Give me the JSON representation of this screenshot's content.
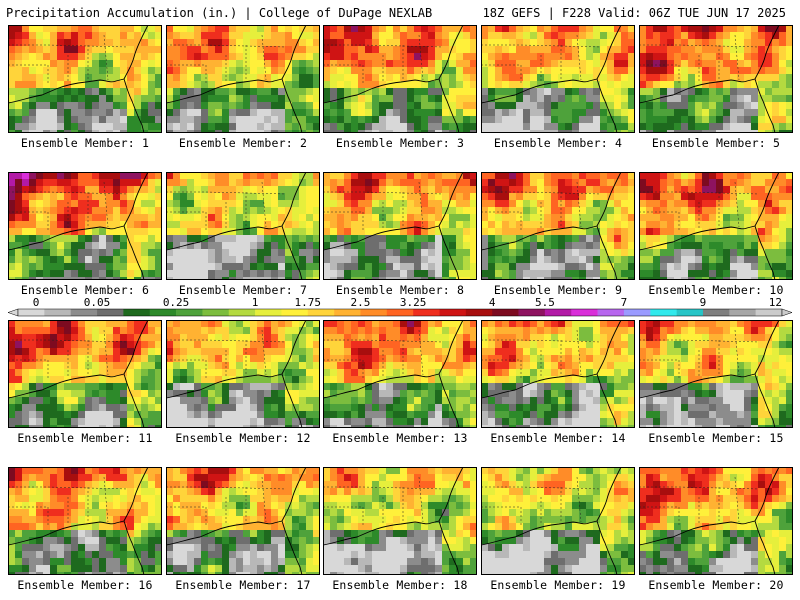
{
  "header": {
    "left": "Precipitation Accumulation (in.) | College of DuPage NEXLAB",
    "right": "18Z GEFS | F228 Valid: 06Z TUE JUN 17 2025"
  },
  "colorbar": {
    "labels": [
      "0",
      "0.05",
      "0.25",
      "1",
      "1.75",
      "2.5",
      "3.25",
      "4",
      "5.5",
      "7",
      "9",
      "12"
    ],
    "colors": [
      "#d8d8d8",
      "#b8b8b8",
      "#8c8c8c",
      "#6e6e6e",
      "#1e6a1e",
      "#2d8a2a",
      "#4ea23b",
      "#7cbd3e",
      "#b4da40",
      "#e6ef3c",
      "#fff03a",
      "#ffd43a",
      "#ffb232",
      "#ff8c28",
      "#ff6422",
      "#ef2e1e",
      "#cf1414",
      "#a80e0e",
      "#7d0b20",
      "#8e1360",
      "#b21aa6",
      "#d92ed9",
      "#b766ee",
      "#9b9bff",
      "#31e9ec",
      "#27c5c7",
      "#7f7f7f",
      "#a6a6a6",
      "#cbcbcb"
    ]
  },
  "panels": [
    {
      "label": "Ensemble Member: 1",
      "wetness": 0.5,
      "west_wet": 0.55
    },
    {
      "label": "Ensemble Member: 2",
      "wetness": 0.45,
      "west_wet": 0.65
    },
    {
      "label": "Ensemble Member: 3",
      "wetness": 0.62,
      "west_wet": 0.7
    },
    {
      "label": "Ensemble Member: 4",
      "wetness": 0.55,
      "west_wet": 0.35
    },
    {
      "label": "Ensemble Member: 5",
      "wetness": 0.65,
      "west_wet": 0.55
    },
    {
      "label": "Ensemble Member: 6",
      "wetness": 0.75,
      "west_wet": 0.6
    },
    {
      "label": "Ensemble Member: 7",
      "wetness": 0.38,
      "west_wet": 0.3
    },
    {
      "label": "Ensemble Member: 8",
      "wetness": 0.55,
      "west_wet": 0.45
    },
    {
      "label": "Ensemble Member: 9",
      "wetness": 0.55,
      "west_wet": 0.55
    },
    {
      "label": "Ensemble Member: 10",
      "wetness": 0.62,
      "west_wet": 0.6
    },
    {
      "label": "Ensemble Member: 11",
      "wetness": 0.62,
      "west_wet": 0.7
    },
    {
      "label": "Ensemble Member: 12",
      "wetness": 0.45,
      "west_wet": 0.4
    },
    {
      "label": "Ensemble Member: 13",
      "wetness": 0.62,
      "west_wet": 0.6
    },
    {
      "label": "Ensemble Member: 14",
      "wetness": 0.45,
      "west_wet": 0.55
    },
    {
      "label": "Ensemble Member: 15",
      "wetness": 0.5,
      "west_wet": 0.35
    },
    {
      "label": "Ensemble Member: 16",
      "wetness": 0.55,
      "west_wet": 0.55
    },
    {
      "label": "Ensemble Member: 17",
      "wetness": 0.45,
      "west_wet": 0.6
    },
    {
      "label": "Ensemble Member: 18",
      "wetness": 0.4,
      "west_wet": 0.3
    },
    {
      "label": "Ensemble Member: 19",
      "wetness": 0.35,
      "west_wet": 0.25
    },
    {
      "label": "Ensemble Member: 20",
      "wetness": 0.58,
      "west_wet": 0.6
    }
  ]
}
